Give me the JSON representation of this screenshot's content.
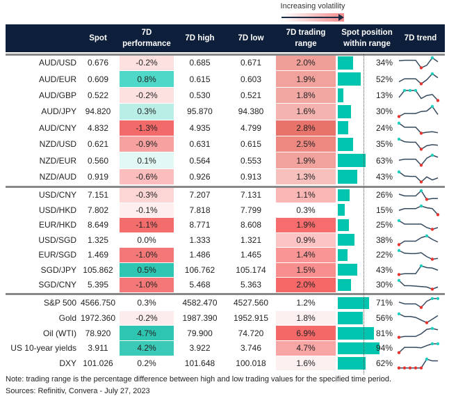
{
  "legend": {
    "label": "Increasing volatility"
  },
  "header": {
    "spot": "Spot",
    "perf": "7D performance",
    "high": "7D high",
    "low": "7D low",
    "range": "7D trading range",
    "position": "Spot position within range",
    "trend": "7D trend"
  },
  "colors": {
    "header_bg": "#0d1f3a",
    "bar": "#00c4ae",
    "max_dot": "#1ecfbe",
    "min_dot": "#e8332f",
    "line": "#34495e"
  },
  "groups": [
    {
      "rows": [
        {
          "name": "AUD/USD",
          "spot": "0.676",
          "perf": "-0.2%",
          "perf_color": "#fde0e0",
          "high": "0.685",
          "low": "0.671",
          "range": "2.0%",
          "range_color": "#f09e98",
          "position": 34,
          "position_label": "34%",
          "trend": [
            0.7,
            0.75,
            0.75,
            0.75,
            0,
            0.25,
            1,
            0.6
          ]
        },
        {
          "name": "AUD/EUR",
          "spot": "0.609",
          "perf": "0.8%",
          "perf_color": "#4fd8c8",
          "high": "0.615",
          "low": "0.603",
          "range": "1.9%",
          "range_color": "#f1a29c",
          "position": 52,
          "position_label": "52%",
          "trend": [
            0.2,
            0.5,
            0.5,
            0.5,
            0,
            0.4,
            1,
            0.6
          ]
        },
        {
          "name": "AUD/GBP",
          "spot": "0.522",
          "perf": "-0.2%",
          "perf_color": "#fde0e0",
          "high": "0.530",
          "low": "0.521",
          "range": "1.8%",
          "range_color": "#f2a8a2",
          "position": 13,
          "position_label": "13%",
          "trend": [
            0.3,
            1,
            1,
            1,
            0.2,
            0.5,
            0.6,
            0
          ]
        },
        {
          "name": "AUD/JPY",
          "spot": "94.820",
          "perf": "0.3%",
          "perf_color": "#b9eee7",
          "high": "95.870",
          "low": "94.380",
          "range": "1.6%",
          "range_color": "#f4b3ae",
          "position": 30,
          "position_label": "30%",
          "trend": [
            0,
            0.3,
            0.3,
            0.3,
            0.5,
            0.55,
            1,
            0.2
          ]
        },
        {
          "name": "AUD/CNY",
          "spot": "4.832",
          "perf": "-1.3%",
          "perf_color": "#f26a6a",
          "high": "4.935",
          "low": "4.799",
          "range": "2.8%",
          "range_color": "#e8736a",
          "position": 24,
          "position_label": "24%",
          "trend": [
            1,
            0.6,
            0.6,
            0.6,
            0,
            0.1,
            0.15,
            0.05
          ]
        },
        {
          "name": "NZD/USD",
          "spot": "0.621",
          "perf": "-0.9%",
          "perf_color": "#f8a1a1",
          "high": "0.631",
          "low": "0.615",
          "range": "2.5%",
          "range_color": "#ec8880",
          "position": 35,
          "position_label": "35%",
          "trend": [
            1,
            0.75,
            0.7,
            0.7,
            0,
            0.35,
            0.45,
            0.4
          ]
        },
        {
          "name": "NZD/EUR",
          "spot": "0.560",
          "perf": "0.1%",
          "perf_color": "#e2f8f5",
          "high": "0.564",
          "low": "0.553",
          "range": "1.9%",
          "range_color": "#f1a29c",
          "position": 63,
          "position_label": "63%",
          "trend": [
            0.5,
            0.6,
            0.6,
            0.6,
            0,
            0.7,
            1,
            0.8
          ]
        },
        {
          "name": "NZD/AUD",
          "spot": "0.919",
          "perf": "-0.6%",
          "perf_color": "#fbbdbd",
          "high": "0.926",
          "low": "0.913",
          "range": "1.3%",
          "range_color": "#f6c1bd",
          "position": 43,
          "position_label": "43%",
          "trend": [
            1,
            0.6,
            0.55,
            0.55,
            0,
            0.5,
            0.2,
            0.4
          ]
        }
      ]
    },
    {
      "rows": [
        {
          "name": "USD/CNY",
          "spot": "7.151",
          "perf": "-0.3%",
          "perf_color": "#fcd5d5",
          "high": "7.207",
          "low": "7.131",
          "range": "1.1%",
          "range_color": "#fbb6b6",
          "position": 26,
          "position_label": "26%",
          "trend": [
            0.6,
            0.4,
            0.4,
            0.4,
            1,
            0,
            0.1,
            0.1
          ]
        },
        {
          "name": "USD/HKD",
          "spot": "7.802",
          "perf": "-0.1%",
          "perf_color": "#feeeee",
          "high": "7.818",
          "low": "7.799",
          "range": "0.3%",
          "range_color": "#ffffff",
          "position": 15,
          "position_label": "15%",
          "trend": [
            0.5,
            0.7,
            0.7,
            0.7,
            1,
            0.8,
            0.7,
            0
          ]
        },
        {
          "name": "EUR/HKD",
          "spot": "8.649",
          "perf": "-1.1%",
          "perf_color": "#f46d6d",
          "high": "8.771",
          "low": "8.608",
          "range": "1.9%",
          "range_color": "#f76c6c",
          "position": 25,
          "position_label": "25%",
          "trend": [
            1,
            0.6,
            0.6,
            0.6,
            0.6,
            0.2,
            0,
            0.2
          ]
        },
        {
          "name": "USD/SGD",
          "spot": "1.325",
          "perf": "0.0%",
          "perf_color": "#ffffff",
          "high": "1.333",
          "low": "1.321",
          "range": "0.9%",
          "range_color": "#fcc4c4",
          "position": 38,
          "position_label": "38%",
          "trend": [
            0,
            0.4,
            0.4,
            0.4,
            0.8,
            1,
            0.6,
            0.3
          ]
        },
        {
          "name": "EUR/SGD",
          "spot": "1.469",
          "perf": "-1.0%",
          "perf_color": "#f57878",
          "high": "1.486",
          "low": "1.465",
          "range": "1.4%",
          "range_color": "#f99595",
          "position": 22,
          "position_label": "22%",
          "trend": [
            1,
            0.7,
            0.65,
            0.65,
            0.75,
            0.3,
            0,
            0.1
          ]
        },
        {
          "name": "SGD/JPY",
          "spot": "105.862",
          "perf": "0.5%",
          "perf_color": "#2ec6b2",
          "high": "106.762",
          "low": "105.174",
          "range": "1.5%",
          "range_color": "#f88e8e",
          "position": 43,
          "position_label": "43%",
          "trend": [
            0,
            0.1,
            0.1,
            0.1,
            1,
            0.8,
            0.75,
            0.5
          ]
        },
        {
          "name": "SGD/CNY",
          "spot": "5.395",
          "perf": "-1.0%",
          "perf_color": "#f57878",
          "high": "5.468",
          "low": "5.363",
          "range": "2.0%",
          "range_color": "#f66868",
          "position": 30,
          "position_label": "30%",
          "trend": [
            1,
            0.4,
            0.4,
            0.35,
            0.3,
            0.25,
            0,
            0.25
          ]
        }
      ]
    },
    {
      "rows": [
        {
          "name": "S&P 500",
          "spot": "4566.750",
          "perf": "0.3%",
          "perf_color": "#ffffff",
          "high": "4582.470",
          "low": "4527.560",
          "range": "1.2%",
          "range_color": "#ffffff",
          "position": 71,
          "position_label": "71%",
          "trend": [
            0.6,
            0.4,
            0.4,
            0.4,
            0,
            0.7,
            1,
            1
          ]
        },
        {
          "name": "Gold",
          "spot": "1972.360",
          "perf": "-0.2%",
          "perf_color": "#fdecec",
          "high": "1987.390",
          "low": "1952.915",
          "range": "1.8%",
          "range_color": "#fdf0f0",
          "position": 56,
          "position_label": "56%",
          "trend": [
            1,
            0.7,
            0.7,
            0.6,
            0.3,
            0,
            0.4,
            0.8
          ]
        },
        {
          "name": "Oil (WTI)",
          "spot": "78.920",
          "perf": "4.7%",
          "perf_color": "#2ec6b2",
          "high": "79.900",
          "low": "74.720",
          "range": "6.9%",
          "range_color": "#f46868",
          "position": 81,
          "position_label": "81%",
          "trend": [
            0,
            0.1,
            0.1,
            0.1,
            0.4,
            0.9,
            1,
            0.85
          ]
        },
        {
          "name": "US 10-year yields",
          "spot": "3.911",
          "perf": "4.2%",
          "perf_color": "#3ccab8",
          "high": "3.922",
          "low": "3.746",
          "range": "4.7%",
          "range_color": "#f8a5a5",
          "position": 94,
          "position_label": "94%",
          "trend": [
            0,
            0.6,
            0.6,
            0.6,
            0.55,
            0.8,
            1,
            1
          ]
        },
        {
          "name": "DXY",
          "spot": "101.026",
          "perf": "0.2%",
          "perf_color": "#ffffff",
          "high": "101.648",
          "low": "100.018",
          "range": "1.6%",
          "range_color": "#fdf0f0",
          "position": 62,
          "position_label": "62%",
          "trend": [
            0,
            0,
            0,
            0,
            0,
            1,
            0.8,
            0.8
          ]
        }
      ]
    }
  ],
  "footer": {
    "note": "Note: trading range is the percentage difference between high and low trading values for the specified time period.",
    "sources": "Sources: Refinitiv, Convera - July 27, 2023"
  }
}
